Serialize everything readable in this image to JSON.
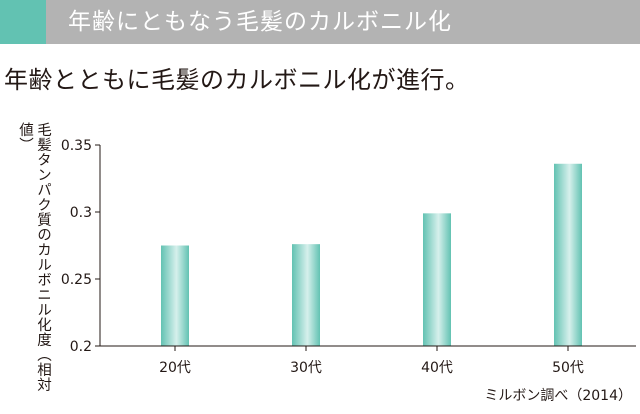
{
  "banner": {
    "title": "年齢にともなう毛髪のカルボニル化"
  },
  "headline": "年齢とともに毛髪のカルボニル化が進行。",
  "source": "ミルボン調べ（2014）",
  "colors": {
    "accent": "#62c2b2",
    "banner_bg": "#b3b3b3",
    "bar_edge": "#62c2b2",
    "bar_center": "#d6f0ec"
  },
  "chart_data": {
    "type": "bar",
    "title": "",
    "ylabel": "毛髪タンパク質のカルボニル化度（相対値）",
    "xlabel": "",
    "categories": [
      "20代",
      "30代",
      "40代",
      "50代"
    ],
    "values": [
      0.275,
      0.276,
      0.299,
      0.336
    ],
    "ylim": [
      0.2,
      0.35
    ],
    "yticks": [
      {
        "value": 0.2,
        "label": "0.2"
      },
      {
        "value": 0.25,
        "label": "0.25"
      },
      {
        "value": 0.3,
        "label": "0.3"
      },
      {
        "value": 0.35,
        "label": "0.35"
      }
    ],
    "grid": false,
    "legend": "none"
  }
}
